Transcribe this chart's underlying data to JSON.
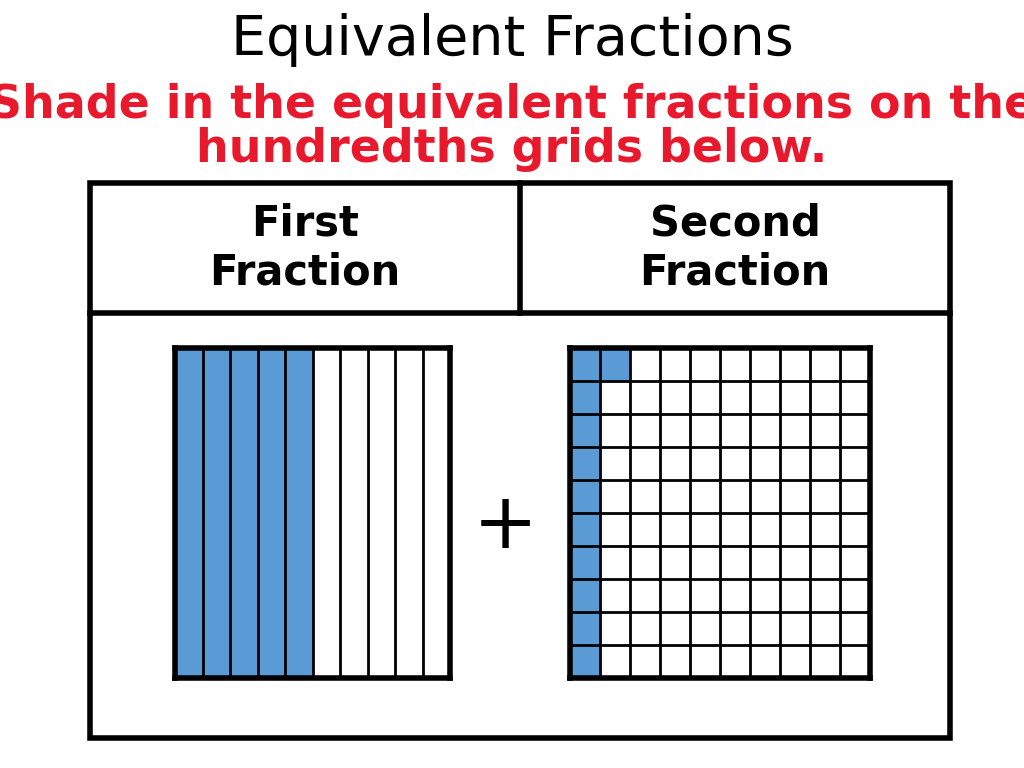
{
  "title": "Equivalent Fractions",
  "subtitle_line1": "Shade in the equivalent fractions on the",
  "subtitle_line2": "hundredths grids below.",
  "title_color": "#000000",
  "subtitle_color": "#e8192c",
  "header1": "First\nFraction",
  "header2": "Second\nFraction",
  "blue_color": "#5b9bd5",
  "grid1_cols": 10,
  "grid1_shaded_cols": 5,
  "grid2_cols": 10,
  "grid2_rows": 10,
  "grid2_shaded_col0_all": true,
  "grid2_shaded_extra": [
    [
      1,
      0
    ]
  ],
  "plus_sign": "+"
}
